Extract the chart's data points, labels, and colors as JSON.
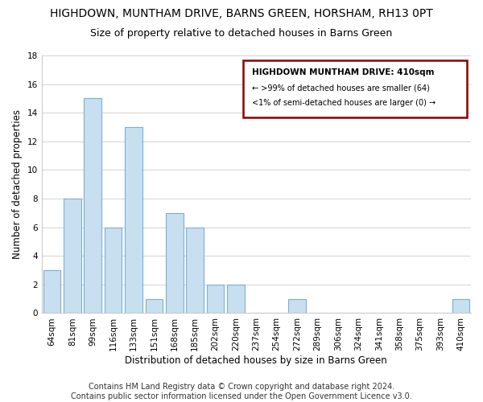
{
  "title": "HIGHDOWN, MUNTHAM DRIVE, BARNS GREEN, HORSHAM, RH13 0PT",
  "subtitle": "Size of property relative to detached houses in Barns Green",
  "xlabel": "Distribution of detached houses by size in Barns Green",
  "ylabel": "Number of detached properties",
  "footer": "Contains HM Land Registry data © Crown copyright and database right 2024.\nContains public sector information licensed under the Open Government Licence v3.0.",
  "categories": [
    "64sqm",
    "81sqm",
    "99sqm",
    "116sqm",
    "133sqm",
    "151sqm",
    "168sqm",
    "185sqm",
    "202sqm",
    "220sqm",
    "237sqm",
    "254sqm",
    "272sqm",
    "289sqm",
    "306sqm",
    "324sqm",
    "341sqm",
    "358sqm",
    "375sqm",
    "393sqm",
    "410sqm"
  ],
  "values": [
    3,
    8,
    15,
    6,
    13,
    1,
    7,
    6,
    2,
    2,
    0,
    0,
    1,
    0,
    0,
    0,
    0,
    0,
    0,
    0,
    1
  ],
  "highlight_index": 20,
  "highlight_color": "#a8c8e8",
  "normal_color": "#c8dff0",
  "bar_edge_color": "#7aafd4",
  "ylim": [
    0,
    18
  ],
  "yticks": [
    0,
    2,
    4,
    6,
    8,
    10,
    12,
    14,
    16,
    18
  ],
  "legend_title": "HIGHDOWN MUNTHAM DRIVE: 410sqm",
  "legend_line1": "← >99% of detached houses are smaller (64)",
  "legend_line2": "<1% of semi-detached houses are larger (0) →",
  "legend_box_color": "#8b0000",
  "title_fontsize": 10,
  "subtitle_fontsize": 9,
  "label_fontsize": 8.5,
  "tick_fontsize": 7.5,
  "footer_fontsize": 7
}
